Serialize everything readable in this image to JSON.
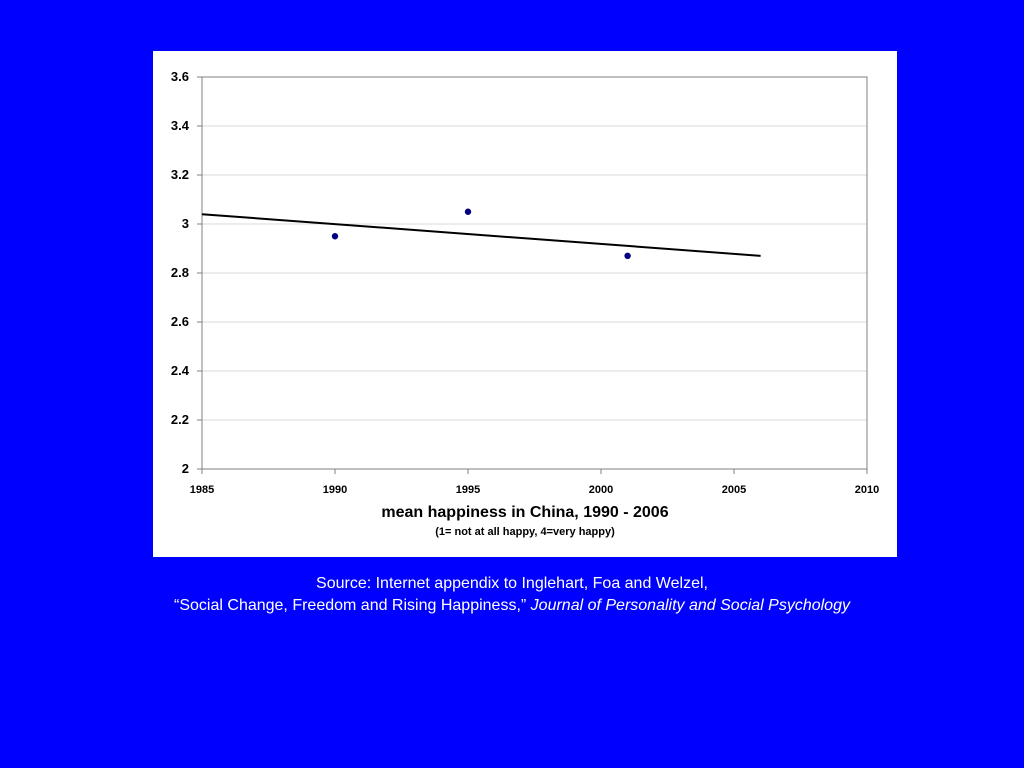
{
  "chart_data": {
    "type": "scatter",
    "title": "mean happiness in China, 1990 - 2006",
    "subtitle": "(1= not at all happy,  4=very happy)",
    "xlabel": "",
    "ylabel": "",
    "xlim": [
      1985,
      2010
    ],
    "ylim": [
      2,
      3.6
    ],
    "x_ticks": [
      1985,
      1990,
      1995,
      2000,
      2005,
      2010
    ],
    "y_ticks": [
      "2",
      "2.2",
      "2.4",
      "2.6",
      "2.8",
      "3",
      "3.2",
      "3.4",
      "3.6"
    ],
    "grid": "horizontal",
    "legend": "none",
    "series": [
      {
        "points": [
          {
            "x": 1990,
            "y": 2.95
          },
          {
            "x": 1995,
            "y": 3.05
          },
          {
            "x": 2001,
            "y": 2.87
          }
        ]
      }
    ],
    "trendline": {
      "x": [
        1985,
        2006
      ],
      "y": [
        3.04,
        2.87
      ]
    },
    "colors": {
      "points": "#000080",
      "trendline": "#000000",
      "grid": "#d9d9d9",
      "axis": "#808080"
    }
  },
  "source": {
    "line1": "Source: Internet appendix to Inglehart, Foa and Welzel,",
    "line2": "“Social Change, Freedom and Rising Happiness,”",
    "journal": "Journal of Personality and Social Psychology"
  },
  "colors": {
    "background": "#0000FF",
    "panel": "#FFFFFF",
    "source_text": "#FFFFFF"
  }
}
